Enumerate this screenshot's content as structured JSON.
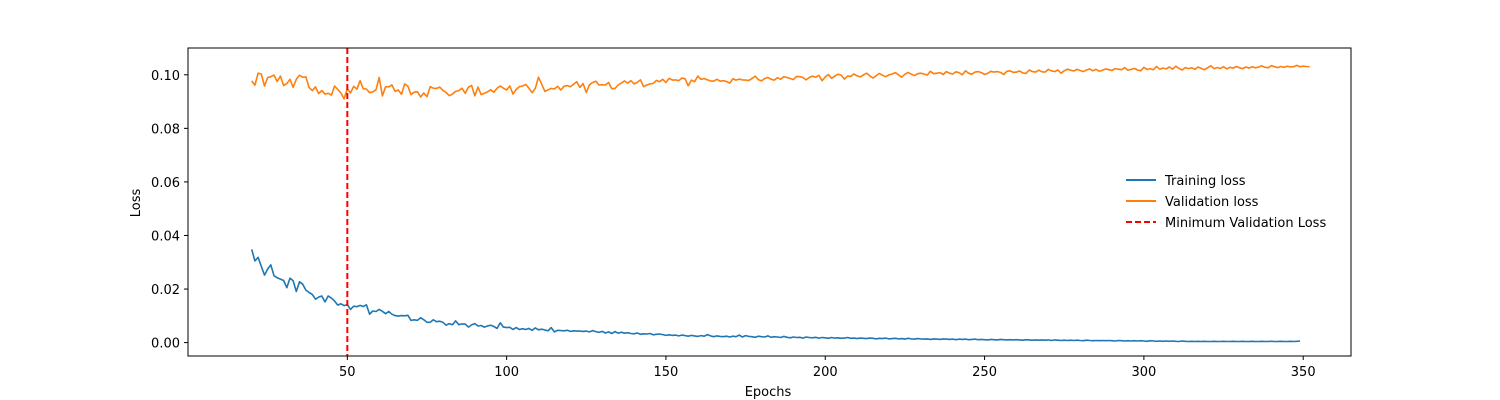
{
  "chart_data": {
    "type": "line",
    "xlabel": "Epochs",
    "ylabel": "Loss",
    "xlim": [
      0,
      365
    ],
    "ylim": [
      -0.005,
      0.11
    ],
    "x_ticks": [
      50,
      100,
      150,
      200,
      250,
      300,
      350
    ],
    "x_tick_labels": [
      "50",
      "100",
      "150",
      "200",
      "250",
      "300",
      "350"
    ],
    "y_ticks": [
      0.0,
      0.02,
      0.04,
      0.06,
      0.08,
      0.1
    ],
    "y_tick_labels": [
      "0.00",
      "0.02",
      "0.04",
      "0.06",
      "0.08",
      "0.10"
    ],
    "grid": false,
    "legend_position": "center-right",
    "x_start": 20,
    "series": [
      {
        "name": "Training loss",
        "color": "#1f77b4",
        "style": "solid",
        "values": [
          0.0348,
          0.0305,
          0.0318,
          0.0285,
          0.0252,
          0.0275,
          0.029,
          0.025,
          0.0242,
          0.0237,
          0.0232,
          0.0205,
          0.0241,
          0.0231,
          0.0191,
          0.0227,
          0.0218,
          0.0196,
          0.0187,
          0.018,
          0.0162,
          0.017,
          0.0174,
          0.0152,
          0.0174,
          0.0166,
          0.0155,
          0.014,
          0.0145,
          0.0138,
          0.0142,
          0.0124,
          0.0136,
          0.0134,
          0.0139,
          0.0135,
          0.0141,
          0.0106,
          0.0118,
          0.0116,
          0.0124,
          0.0117,
          0.0108,
          0.0116,
          0.0106,
          0.0101,
          0.0099,
          0.0101,
          0.01,
          0.0102,
          0.0083,
          0.0085,
          0.0083,
          0.0093,
          0.0085,
          0.0076,
          0.0076,
          0.0085,
          0.0078,
          0.008,
          0.0076,
          0.0065,
          0.0071,
          0.0067,
          0.0081,
          0.0067,
          0.007,
          0.0069,
          0.0058,
          0.0066,
          0.0071,
          0.0062,
          0.0064,
          0.0058,
          0.0062,
          0.0065,
          0.006,
          0.0053,
          0.0074,
          0.0058,
          0.0056,
          0.0057,
          0.0049,
          0.0056,
          0.0049,
          0.0052,
          0.0049,
          0.0053,
          0.0046,
          0.0055,
          0.0048,
          0.005,
          0.0047,
          0.0044,
          0.0056,
          0.004,
          0.0046,
          0.0045,
          0.0044,
          0.0046,
          0.0042,
          0.0044,
          0.0043,
          0.0043,
          0.0042,
          0.0043,
          0.004,
          0.0045,
          0.0041,
          0.0038,
          0.0042,
          0.0036,
          0.004,
          0.0034,
          0.0041,
          0.0035,
          0.0039,
          0.0035,
          0.0037,
          0.0034,
          0.0033,
          0.0036,
          0.0031,
          0.0033,
          0.0032,
          0.0034,
          0.0029,
          0.0031,
          0.0032,
          0.003,
          0.0027,
          0.0029,
          0.0027,
          0.0028,
          0.0025,
          0.0028,
          0.0026,
          0.0024,
          0.0027,
          0.0025,
          0.0023,
          0.0026,
          0.0024,
          0.003,
          0.0025,
          0.0022,
          0.0025,
          0.0023,
          0.0022,
          0.0024,
          0.0021,
          0.0024,
          0.0022,
          0.0028,
          0.0021,
          0.0026,
          0.0023,
          0.0022,
          0.002,
          0.0024,
          0.0022,
          0.0021,
          0.0025,
          0.002,
          0.0022,
          0.0021,
          0.0019,
          0.0023,
          0.002,
          0.0018,
          0.0021,
          0.0019,
          0.002,
          0.0017,
          0.0021,
          0.0019,
          0.0018,
          0.002,
          0.0017,
          0.0019,
          0.0018,
          0.0016,
          0.0019,
          0.0017,
          0.0018,
          0.0016,
          0.0017,
          0.0019,
          0.0016,
          0.0017,
          0.0015,
          0.0017,
          0.0016,
          0.0015,
          0.0017,
          0.0016,
          0.0014,
          0.0016,
          0.0015,
          0.0017,
          0.0014,
          0.0015,
          0.0016,
          0.0014,
          0.0015,
          0.0013,
          0.0016,
          0.0014,
          0.0013,
          0.0015,
          0.0014,
          0.0013,
          0.0014,
          0.0012,
          0.0014,
          0.0013,
          0.0012,
          0.0014,
          0.0013,
          0.0012,
          0.0013,
          0.0011,
          0.0013,
          0.0012,
          0.0013,
          0.0011,
          0.0012,
          0.0013,
          0.0011,
          0.0012,
          0.0011,
          0.001,
          0.0012,
          0.0011,
          0.001,
          0.0012,
          0.0011,
          0.001,
          0.0011,
          0.001,
          0.0011,
          0.001,
          0.0009,
          0.0011,
          0.001,
          0.0009,
          0.001,
          0.0009,
          0.001,
          0.0009,
          0.001,
          0.0008,
          0.001,
          0.0009,
          0.0008,
          0.0009,
          0.0008,
          0.0009,
          0.0008,
          0.0009,
          0.0008,
          0.0007,
          0.0009,
          0.0008,
          0.0007,
          0.0008,
          0.0007,
          0.0008,
          0.0007,
          0.0008,
          0.0007,
          0.0006,
          0.0008,
          0.0007,
          0.0006,
          0.0007,
          0.0006,
          0.0007,
          0.0006,
          0.0007,
          0.0006,
          0.0005,
          0.0007,
          0.0006,
          0.0005,
          0.0006,
          0.0005,
          0.0006,
          0.0005,
          0.0006,
          0.0005,
          0.0004,
          0.0006,
          0.0005,
          0.0004,
          0.0005,
          0.0004,
          0.0005,
          0.0004,
          0.0005,
          0.0004,
          0.0004,
          0.0005,
          0.0004,
          0.0004,
          0.0005,
          0.0004,
          0.0004,
          0.0005,
          0.0004,
          0.0004,
          0.0005,
          0.0004,
          0.0004,
          0.0005,
          0.0004,
          0.0004,
          0.0005,
          0.0004,
          0.0004,
          0.0005,
          0.0004,
          0.0004,
          0.0005,
          0.0004,
          0.0004,
          0.0005,
          0.0004,
          0.0005,
          0.0006
        ]
      },
      {
        "name": "Validation loss",
        "color": "#ff7f0e",
        "style": "solid",
        "values": [
          0.0977,
          0.0961,
          0.1006,
          0.1003,
          0.0958,
          0.099,
          0.0993,
          0.0999,
          0.0975,
          0.0995,
          0.096,
          0.0967,
          0.0983,
          0.0953,
          0.0983,
          0.0998,
          0.0991,
          0.0992,
          0.0952,
          0.0941,
          0.0955,
          0.093,
          0.0941,
          0.0928,
          0.0931,
          0.0924,
          0.0958,
          0.0945,
          0.0932,
          0.091,
          0.0948,
          0.0932,
          0.0957,
          0.0946,
          0.0978,
          0.0948,
          0.0947,
          0.0933,
          0.0936,
          0.0944,
          0.099,
          0.0921,
          0.0955,
          0.0955,
          0.0962,
          0.0938,
          0.0943,
          0.0927,
          0.0966,
          0.0957,
          0.0926,
          0.0935,
          0.0937,
          0.0917,
          0.0932,
          0.0918,
          0.0956,
          0.095,
          0.0949,
          0.0954,
          0.0942,
          0.0934,
          0.0922,
          0.0928,
          0.0938,
          0.0941,
          0.095,
          0.0931,
          0.0954,
          0.096,
          0.0921,
          0.0954,
          0.0926,
          0.0931,
          0.0936,
          0.0944,
          0.0935,
          0.095,
          0.0958,
          0.095,
          0.0943,
          0.0958,
          0.0928,
          0.0945,
          0.0956,
          0.0958,
          0.0964,
          0.095,
          0.0933,
          0.0949,
          0.0991,
          0.0965,
          0.0938,
          0.0944,
          0.0949,
          0.0947,
          0.0957,
          0.0943,
          0.0957,
          0.096,
          0.0955,
          0.0965,
          0.0974,
          0.0953,
          0.0967,
          0.0934,
          0.0963,
          0.0971,
          0.0976,
          0.0962,
          0.0963,
          0.0962,
          0.0971,
          0.0948,
          0.0949,
          0.0962,
          0.0969,
          0.0977,
          0.0969,
          0.0978,
          0.0966,
          0.0972,
          0.0981,
          0.0956,
          0.0962,
          0.0966,
          0.0968,
          0.0979,
          0.0974,
          0.0983,
          0.0971,
          0.0987,
          0.098,
          0.0981,
          0.0978,
          0.0988,
          0.0985,
          0.0959,
          0.098,
          0.0974,
          0.0995,
          0.0983,
          0.0986,
          0.0981,
          0.0977,
          0.0976,
          0.0983,
          0.0976,
          0.0978,
          0.0975,
          0.0969,
          0.0985,
          0.098,
          0.0984,
          0.0981,
          0.098,
          0.0979,
          0.0986,
          0.0995,
          0.0982,
          0.0977,
          0.0986,
          0.099,
          0.0983,
          0.098,
          0.0989,
          0.0983,
          0.0993,
          0.099,
          0.0986,
          0.0982,
          0.0994,
          0.0993,
          0.099,
          0.0981,
          0.099,
          0.0995,
          0.0991,
          0.0998,
          0.0978,
          0.0992,
          0.1001,
          0.0987,
          0.0995,
          0.1002,
          0.0999,
          0.0984,
          0.0995,
          0.0994,
          0.1003,
          0.0996,
          0.0992,
          0.1,
          0.1006,
          0.0996,
          0.0988,
          0.0997,
          0.1005,
          0.0998,
          0.0993,
          0.1,
          0.1003,
          0.1008,
          0.1,
          0.0991,
          0.1002,
          0.1009,
          0.1002,
          0.0997,
          0.1004,
          0.1006,
          0.1003,
          0.0999,
          0.1013,
          0.1004,
          0.1006,
          0.1008,
          0.1001,
          0.1012,
          0.1006,
          0.1003,
          0.1011,
          0.1008,
          0.1,
          0.1015,
          0.1006,
          0.1002,
          0.101,
          0.1012,
          0.1008,
          0.1001,
          0.1006,
          0.1013,
          0.101,
          0.1012,
          0.1009,
          0.1001,
          0.1013,
          0.1015,
          0.1009,
          0.101,
          0.1014,
          0.1007,
          0.1005,
          0.1018,
          0.1012,
          0.101,
          0.1017,
          0.1011,
          0.101,
          0.102,
          0.1015,
          0.1012,
          0.1018,
          0.1006,
          0.1015,
          0.1021,
          0.1017,
          0.1014,
          0.102,
          0.1016,
          0.1012,
          0.1018,
          0.1022,
          0.1015,
          0.102,
          0.1013,
          0.1017,
          0.1022,
          0.1019,
          0.1016,
          0.1023,
          0.1021,
          0.1019,
          0.1027,
          0.1017,
          0.102,
          0.1024,
          0.1018,
          0.1015,
          0.1028,
          0.102,
          0.1023,
          0.1019,
          0.1031,
          0.1021,
          0.1025,
          0.1022,
          0.1029,
          0.1021,
          0.1032,
          0.1024,
          0.1018,
          0.1027,
          0.1023,
          0.1026,
          0.102,
          0.1029,
          0.1024,
          0.1019,
          0.1026,
          0.1034,
          0.1023,
          0.1027,
          0.1024,
          0.103,
          0.1022,
          0.1028,
          0.1025,
          0.1031,
          0.1026,
          0.1023,
          0.1029,
          0.1025,
          0.103,
          0.1026,
          0.1029,
          0.1033,
          0.1028,
          0.1026,
          0.1034,
          0.103,
          0.1027,
          0.1031,
          0.1028,
          0.1032,
          0.1029,
          0.103,
          0.1035,
          0.103,
          0.1032,
          0.1031,
          0.103
        ]
      }
    ],
    "vline": {
      "name": "Minimum Validation Loss",
      "x": 50,
      "color": "#ff0000",
      "style": "dashed"
    }
  }
}
